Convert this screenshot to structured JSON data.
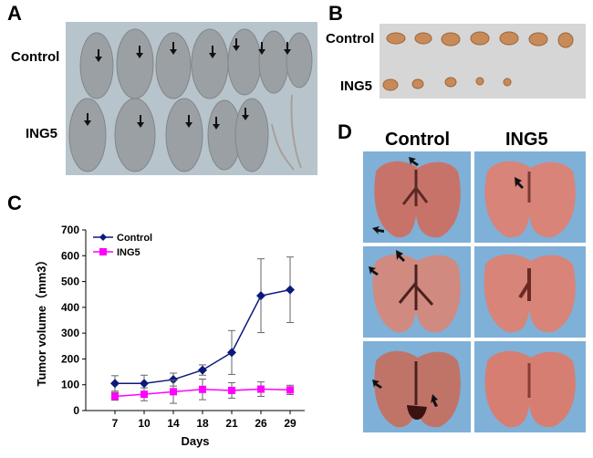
{
  "panels": {
    "A": {
      "letter": "A",
      "row_labels": [
        "Control",
        "ING5"
      ]
    },
    "B": {
      "letter": "B",
      "row_labels": [
        "Control",
        "ING5"
      ]
    },
    "C": {
      "letter": "C"
    },
    "D": {
      "letter": "D",
      "column_labels": [
        "Control",
        "ING5"
      ]
    }
  },
  "colors": {
    "control_series": "#0b1a7a",
    "ing5_series": "#ff00ff",
    "photo_bg_A": "#b8c4cc",
    "photo_bg_B": "#d6d6d6",
    "lung_bg": "#7fb0d8"
  },
  "chart_data": {
    "type": "line",
    "x": [
      7,
      10,
      14,
      18,
      21,
      26,
      29
    ],
    "xlabel": "Days",
    "ylabel": "Tumor volume（mm3）",
    "ylim": [
      0,
      700
    ],
    "yticks": [
      0,
      100,
      200,
      300,
      400,
      500,
      600,
      700
    ],
    "legend_position": "top-left",
    "series": [
      {
        "name": "Control",
        "marker": "diamond",
        "color": "#0b1a7a",
        "values": [
          105,
          105,
          120,
          157,
          225,
          445,
          468
        ],
        "errors": [
          30,
          32,
          25,
          20,
          85,
          143,
          127
        ]
      },
      {
        "name": "ING5",
        "marker": "square",
        "color": "#ff00ff",
        "values": [
          55,
          63,
          73,
          82,
          78,
          83,
          80
        ],
        "errors": [
          15,
          25,
          45,
          40,
          30,
          28,
          18
        ]
      }
    ]
  }
}
